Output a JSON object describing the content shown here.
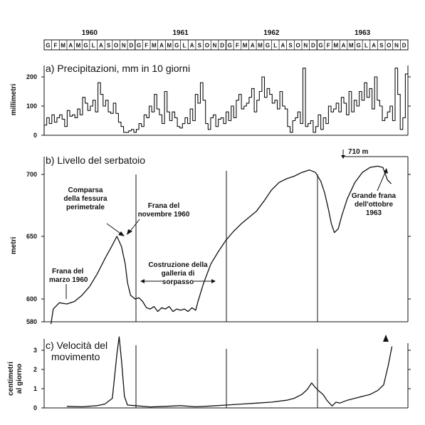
{
  "months_strip": {
    "years": [
      "1960",
      "1961",
      "1962",
      "1963"
    ],
    "months": [
      "G",
      "F",
      "M",
      "A",
      "M",
      "G",
      "L",
      "A",
      "S",
      "O",
      "N",
      "D"
    ]
  },
  "chart_data": [
    {
      "type": "line",
      "title": "a) Precipitazioni, mm in 10 giorni",
      "xlabel": "",
      "ylabel": "millimetri",
      "ylim": [
        0,
        240
      ],
      "yticks": [
        "0",
        "100",
        "200"
      ],
      "x_unit": "months since Jan 1960 (10-day periods)",
      "series": [
        {
          "name": "",
          "values": [
            35,
            60,
            40,
            70,
            45,
            60,
            70,
            55,
            30,
            85,
            65,
            70,
            60,
            90,
            70,
            130,
            110,
            85,
            100,
            120,
            80,
            180,
            140,
            100,
            120,
            80,
            75,
            110,
            75,
            45,
            30,
            10,
            10,
            15,
            20,
            10,
            20,
            40,
            30,
            70,
            60,
            100,
            80,
            140,
            90,
            70,
            40,
            150,
            80,
            50,
            80,
            60,
            30,
            25,
            40,
            60,
            40,
            90,
            50,
            140,
            110,
            180,
            120,
            40,
            20,
            60,
            70,
            30,
            55,
            60,
            40,
            80,
            50,
            100,
            60,
            120,
            140,
            90,
            100,
            110,
            130,
            160,
            80,
            120,
            150,
            200,
            130,
            160,
            140,
            110,
            120,
            90,
            150,
            100,
            90,
            30,
            10,
            50,
            60,
            80,
            40,
            230,
            30,
            40,
            50,
            10,
            30,
            70,
            20,
            60,
            40,
            100,
            80,
            90,
            110,
            80,
            130,
            110,
            70,
            150,
            80,
            120,
            100,
            150,
            120,
            180,
            130,
            160,
            90,
            200,
            120,
            100,
            50,
            60,
            80,
            100,
            50,
            230,
            140,
            20,
            60,
            210
          ]
        }
      ]
    },
    {
      "type": "line",
      "title": "b) Livello del serbatoio",
      "xlabel": "",
      "ylabel": "metri",
      "ylim": [
        580,
        710
      ],
      "yticks": [
        "580",
        "600",
        "650",
        "700"
      ],
      "annotations": [
        "Frana del marzo 1960",
        "Comparsa della fessura perimetrale",
        "Frana del novembre 1960",
        "Costruzione della galleria di sorpasso",
        "Grande frana dell'ottobre 1963",
        "710 m"
      ],
      "series": [
        {
          "name": "",
          "points": [
            [
              0.9,
              580
            ],
            [
              1.2,
              592
            ],
            [
              2,
              597
            ],
            [
              3,
              596
            ],
            [
              4,
              598
            ],
            [
              5,
              603
            ],
            [
              6,
              610
            ],
            [
              7,
              620
            ],
            [
              8,
              632
            ],
            [
              9,
              643
            ],
            [
              9.6,
              650
            ],
            [
              10.2,
              642
            ],
            [
              10.7,
              628
            ],
            [
              11,
              613
            ],
            [
              11.4,
              603
            ],
            [
              12,
              600
            ],
            [
              12.5,
              601
            ],
            [
              13,
              598
            ],
            [
              13.5,
              593
            ],
            [
              14,
              592
            ],
            [
              14.5,
              594
            ],
            [
              15,
              590
            ],
            [
              15.5,
              593
            ],
            [
              16,
              592
            ],
            [
              16.5,
              594
            ],
            [
              17,
              590
            ],
            [
              17.5,
              592
            ],
            [
              18,
              591
            ],
            [
              18.5,
              592
            ],
            [
              19,
              590
            ],
            [
              19.5,
              593
            ],
            [
              20,
              591
            ],
            [
              20.3,
              598
            ],
            [
              21,
              612
            ],
            [
              22,
              628
            ],
            [
              23,
              638
            ],
            [
              24,
              647
            ],
            [
              25,
              654
            ],
            [
              26,
              660
            ],
            [
              27,
              665
            ],
            [
              28,
              670
            ],
            [
              29,
              678
            ],
            [
              30,
              687
            ],
            [
              31,
              693
            ],
            [
              32,
              696
            ],
            [
              33,
              698
            ],
            [
              34,
              701
            ],
            [
              35,
              703
            ],
            [
              35.8,
              701
            ],
            [
              36.5,
              694
            ],
            [
              37,
              685
            ],
            [
              37.5,
              672
            ],
            [
              37.9,
              660
            ],
            [
              38.3,
              653
            ],
            [
              38.8,
              656
            ],
            [
              39.3,
              667
            ],
            [
              40,
              680
            ],
            [
              41,
              693
            ],
            [
              42,
              701
            ],
            [
              43,
              705
            ],
            [
              44,
              706
            ],
            [
              44.7,
              705
            ],
            [
              45.3,
              695
            ],
            [
              45.8,
              692
            ]
          ]
        }
      ]
    },
    {
      "type": "line",
      "title": "c) Velocità del movimento",
      "xlabel": "",
      "ylabel": "centimetri al giorno",
      "ylim": [
        0,
        4
      ],
      "yticks": [
        "0",
        "1",
        "2",
        "3"
      ],
      "series": [
        {
          "name": "",
          "points": [
            [
              3,
              0.08
            ],
            [
              5,
              0.06
            ],
            [
              7,
              0.12
            ],
            [
              8,
              0.2
            ],
            [
              9,
              0.5
            ],
            [
              9.6,
              2.8
            ],
            [
              9.9,
              3.7
            ],
            [
              10.2,
              2.5
            ],
            [
              10.6,
              0.6
            ],
            [
              11,
              0.15
            ],
            [
              12,
              0.12
            ],
            [
              14,
              0.05
            ],
            [
              16,
              0.08
            ],
            [
              18,
              0.12
            ],
            [
              20,
              0.06
            ],
            [
              22,
              0.1
            ],
            [
              24,
              0.15
            ],
            [
              26,
              0.2
            ],
            [
              28,
              0.25
            ],
            [
              30,
              0.3
            ],
            [
              32,
              0.4
            ],
            [
              33,
              0.5
            ],
            [
              34,
              0.7
            ],
            [
              34.7,
              0.95
            ],
            [
              35.3,
              1.3
            ],
            [
              35.7,
              1.1
            ],
            [
              36.2,
              0.9
            ],
            [
              36.8,
              0.7
            ],
            [
              37.3,
              0.4
            ],
            [
              38,
              0.1
            ],
            [
              38.5,
              0.3
            ],
            [
              39,
              0.25
            ],
            [
              40,
              0.4
            ],
            [
              41,
              0.5
            ],
            [
              42,
              0.6
            ],
            [
              43,
              0.7
            ],
            [
              44,
              0.9
            ],
            [
              44.8,
              1.2
            ],
            [
              45.4,
              2.2
            ],
            [
              45.9,
              3.2
            ]
          ]
        }
      ]
    }
  ],
  "labels": {
    "a_ticks": [
      "0",
      "100",
      "200"
    ],
    "b_ticks": [
      "580",
      "600",
      "650",
      "700"
    ],
    "c_ticks": [
      "0",
      "1",
      "2",
      "3"
    ],
    "a_ylabel": "millimetri",
    "b_ylabel": "metri",
    "c_ylabel_1": "centimetri",
    "c_ylabel_2": "al giorno",
    "a_title": "a) Precipitazioni, mm in 10 giorni",
    "b_title": "b) Livello del serbatoio",
    "c_title_1": "c) Velocità del",
    "c_title_2": "movimento",
    "ann_frana_marzo_1": "Frana del",
    "ann_frana_marzo_2": "marzo 1960",
    "ann_comparsa_1": "Comparsa",
    "ann_comparsa_2": "della fessura",
    "ann_comparsa_3": "perimetrale",
    "ann_frana_nov_1": "Frana del",
    "ann_frana_nov_2": "novembre 1960",
    "ann_galleria_1": "Costruzione della",
    "ann_galleria_2": "galleria di",
    "ann_galleria_3": "sorpasso",
    "ann_grande_1": "Grande frana",
    "ann_grande_2": "dell'ottobre",
    "ann_grande_3": "1963",
    "ann_710": "710 m"
  }
}
